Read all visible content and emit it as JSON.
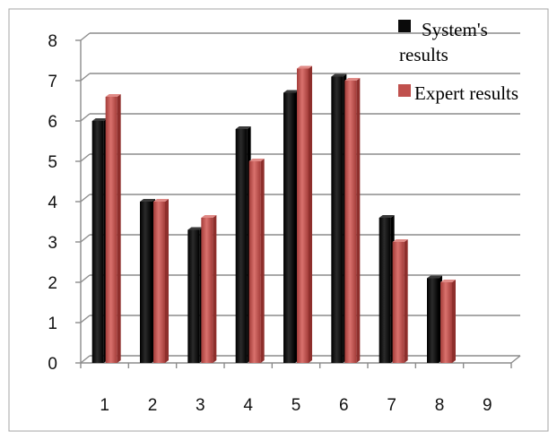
{
  "chart_data": {
    "type": "bar",
    "title": "",
    "xlabel": "",
    "ylabel": "",
    "categories": [
      "1",
      "2",
      "3",
      "4",
      "5",
      "6",
      "7",
      "8",
      "9"
    ],
    "ylim": [
      0,
      8
    ],
    "yticks": [
      "0",
      "1",
      "2",
      "3",
      "4",
      "5",
      "6",
      "7",
      "8"
    ],
    "grid": true,
    "legend_placement": "top-right",
    "series": [
      {
        "name": "System's results",
        "name_lines": [
          "System's",
          "results"
        ],
        "color": "#0a0a0a",
        "values": [
          6.0,
          4.0,
          3.3,
          5.8,
          6.7,
          7.1,
          3.6,
          2.1,
          null
        ]
      },
      {
        "name": "Expert results",
        "name_lines": [
          "Expert results"
        ],
        "color": "#c0504d",
        "values": [
          6.6,
          4.0,
          3.6,
          5.0,
          7.3,
          7.0,
          3.0,
          2.0,
          null
        ]
      }
    ]
  }
}
